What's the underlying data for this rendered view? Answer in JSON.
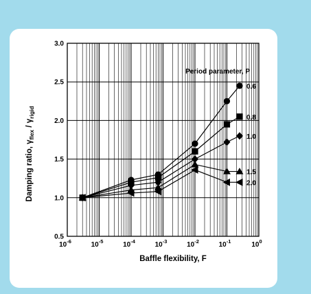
{
  "chart_data": {
    "type": "line",
    "title": "",
    "xlabel": "Baffle flexibility, F",
    "ylabel": {
      "prefix": "Damping ratio, ",
      "sym1": "γ",
      "sub1": "flex",
      "sep": " / ",
      "sym2": "γ",
      "sub2": "rigid"
    },
    "x_scale": "log",
    "xlim": [
      1e-06,
      1
    ],
    "ylim": [
      0.5,
      3.0
    ],
    "grid": true,
    "x_ticks": [
      {
        "value": 1e-06,
        "base": "10",
        "exp": "-6"
      },
      {
        "value": 1e-05,
        "base": "10",
        "exp": "-5"
      },
      {
        "value": 0.0001,
        "base": "10",
        "exp": "-4"
      },
      {
        "value": 0.001,
        "base": "10",
        "exp": "-3"
      },
      {
        "value": 0.01,
        "base": "10",
        "exp": "-2"
      },
      {
        "value": 0.1,
        "base": "10",
        "exp": "-1"
      },
      {
        "value": 1,
        "base": "10",
        "exp": "0"
      }
    ],
    "y_ticks": [
      0.5,
      1.0,
      1.5,
      2.0,
      2.5,
      3.0
    ],
    "y_tick_labels": [
      "0.5",
      "1.0",
      "1.5",
      "2.0",
      "2.5",
      "3.0"
    ],
    "legend_title": "Period parameter, P",
    "series": [
      {
        "name": "0.6",
        "marker": "circle",
        "x": [
          3e-06,
          0.0001,
          0.0007,
          0.01,
          0.1,
          0.25
        ],
        "y": [
          1.0,
          1.23,
          1.3,
          1.7,
          2.25,
          2.45
        ]
      },
      {
        "name": "0.8",
        "marker": "square",
        "x": [
          3e-06,
          0.0001,
          0.0007,
          0.01,
          0.1,
          0.25
        ],
        "y": [
          1.0,
          1.2,
          1.26,
          1.6,
          1.95,
          2.05
        ]
      },
      {
        "name": "1.0",
        "marker": "diamond",
        "x": [
          3e-06,
          0.0001,
          0.0007,
          0.01,
          0.1,
          0.25
        ],
        "y": [
          1.0,
          1.16,
          1.2,
          1.5,
          1.72,
          1.8
        ]
      },
      {
        "name": "1.5",
        "marker": "triangle-up",
        "x": [
          3e-06,
          0.0001,
          0.0007,
          0.01,
          0.1,
          0.25
        ],
        "y": [
          1.0,
          1.1,
          1.13,
          1.43,
          1.34,
          1.34
        ]
      },
      {
        "name": "2.0",
        "marker": "triangle-left",
        "x": [
          3e-06,
          0.0001,
          0.0007,
          0.01,
          0.1,
          0.25
        ],
        "y": [
          1.0,
          1.06,
          1.08,
          1.36,
          1.2,
          1.2
        ]
      }
    ],
    "colors": {
      "ink": "#000000",
      "background": "#a2dbec",
      "panel": "#ffffff"
    }
  }
}
